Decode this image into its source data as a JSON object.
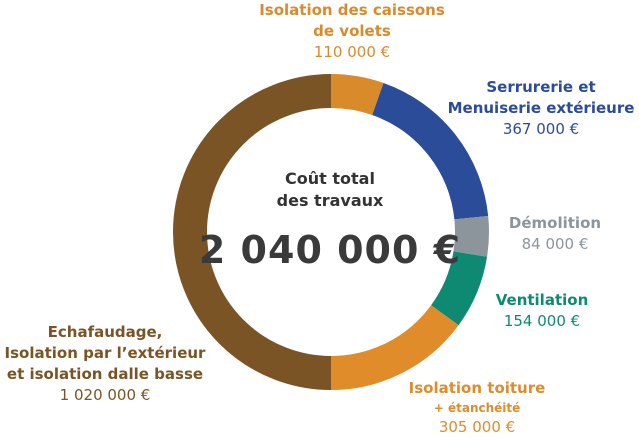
{
  "center": {
    "title_line1": "Coût total",
    "title_line2": "des travaux",
    "total": "2 040 000 €"
  },
  "labels": {
    "volets": {
      "line1": "Isolation des caissons",
      "line2": "de volets",
      "value": "110 000 €",
      "color": "#d98a2b"
    },
    "serrurerie": {
      "line1": "Serrurerie et",
      "line2": "Menuiserie extérieure",
      "value": "367 000 €",
      "color": "#2b4c98"
    },
    "demolition": {
      "line1": "Démolition",
      "value": "84 000 €",
      "color": "#8c959c"
    },
    "ventilation": {
      "line1": "Ventilation",
      "value": "154 000 €",
      "color": "#0e8a72"
    },
    "toiture": {
      "line1": "Isolation toiture",
      "sub": "+ étanchéité",
      "value": "305 000 €",
      "color": "#e08c2b"
    },
    "echafaudage": {
      "line1": "Echafaudage,",
      "line2": "Isolation par l’extérieur",
      "line3": "et isolation dalle basse",
      "value": "1 020 000 €",
      "color": "#7a5424"
    }
  },
  "chart_data": {
    "type": "pie",
    "style": "donut",
    "title": "Coût total des travaux",
    "total": 2040000,
    "start_angle_deg": 0,
    "direction": "clockwise",
    "series": [
      {
        "name": "Isolation des caissons de volets",
        "value": 110000,
        "color": "#d98a2b"
      },
      {
        "name": "Serrurerie et Menuiserie extérieure",
        "value": 367000,
        "color": "#2b4c98"
      },
      {
        "name": "Démolition",
        "value": 84000,
        "color": "#8c959c"
      },
      {
        "name": "Ventilation",
        "value": 154000,
        "color": "#0e8a72"
      },
      {
        "name": "Isolation toiture + étanchéité",
        "value": 305000,
        "color": "#e08c2b"
      },
      {
        "name": "Echafaudage, Isolation par l’extérieur et isolation dalle basse",
        "value": 1020000,
        "color": "#7a5424"
      }
    ]
  }
}
